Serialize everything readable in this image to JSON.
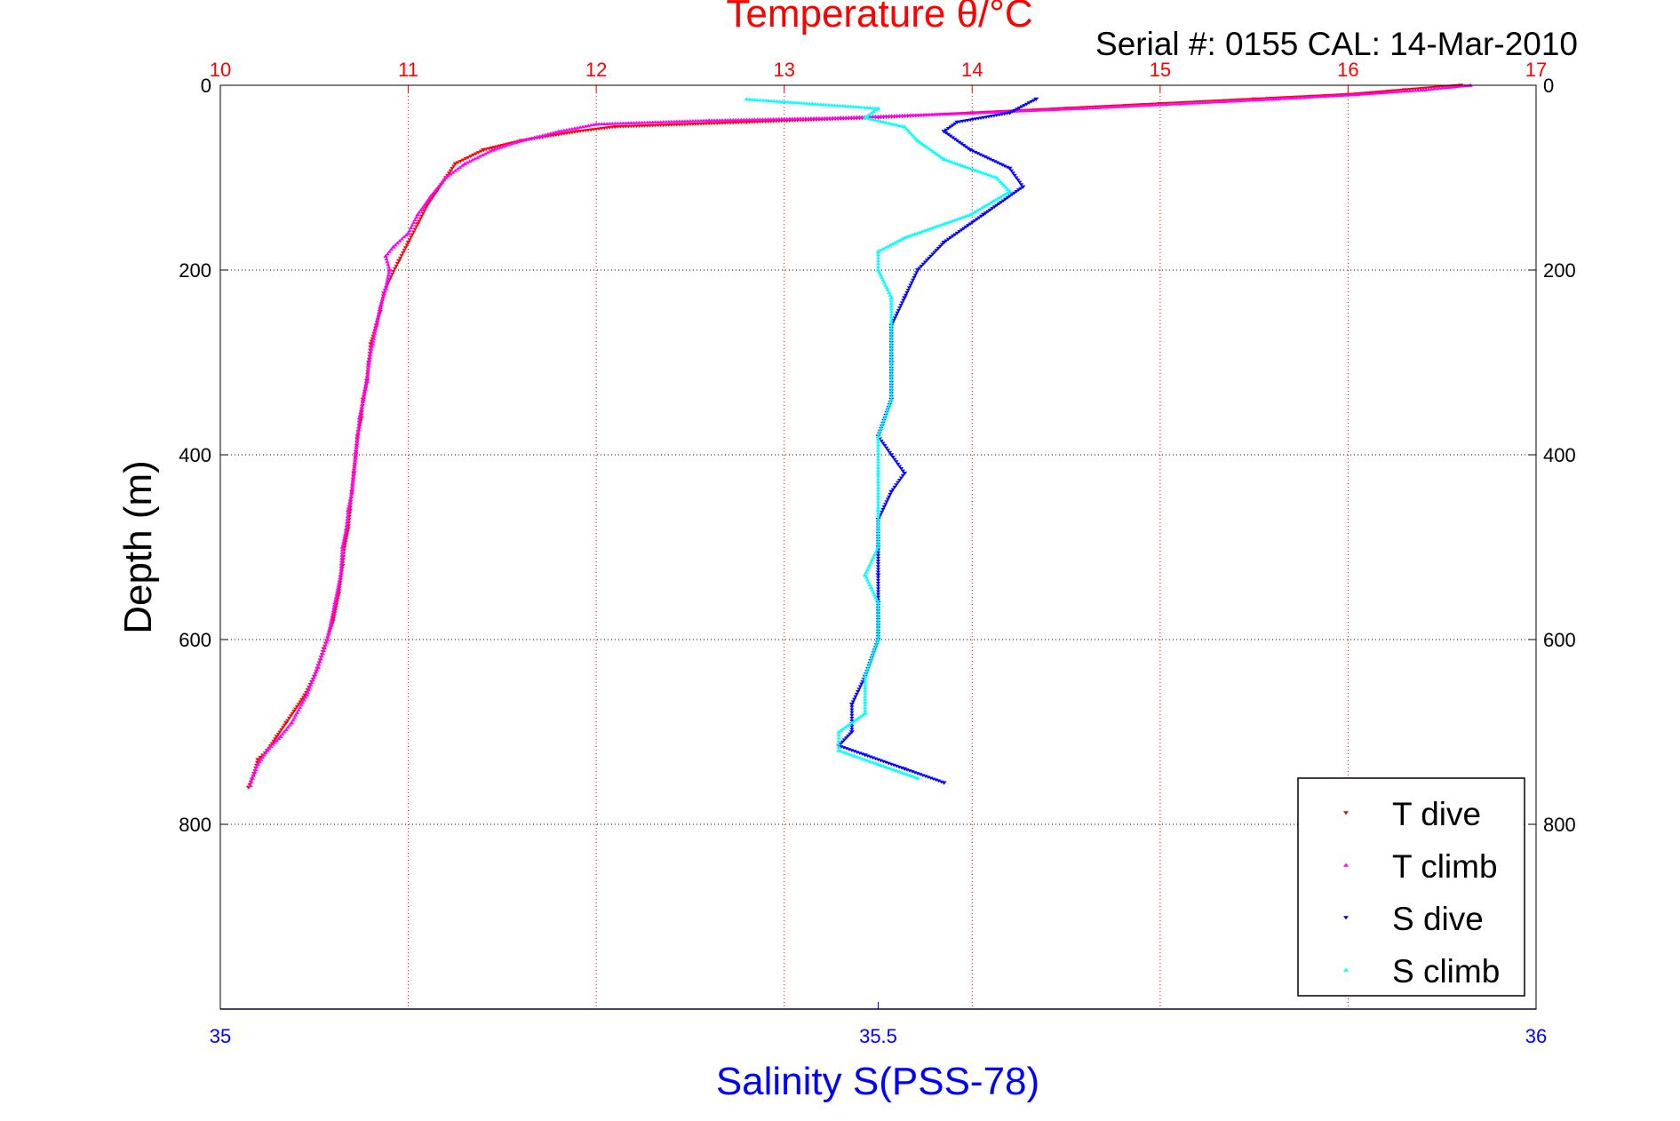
{
  "chart_data": {
    "type": "scatter",
    "title": "Temperature θ/°C",
    "subtitle": "Serial #: 0155  CAL: 14-Mar-2010",
    "xlabel": "Salinity S(PSS-78)",
    "ylabel": "Depth (m)",
    "y_axis": {
      "range": [
        0,
        1000
      ],
      "reversed": true,
      "ticks": [
        0,
        200,
        400,
        600,
        800
      ],
      "tick_labels": [
        "0",
        "200",
        "400",
        "600",
        "800"
      ]
    },
    "x_top_axis": {
      "quantity": "Temperature",
      "range": [
        10,
        17
      ],
      "ticks": [
        10,
        11,
        12,
        13,
        14,
        15,
        16,
        17
      ],
      "tick_labels": [
        "10",
        "11",
        "12",
        "13",
        "14",
        "15",
        "16",
        "17"
      ],
      "color": "#ff0000"
    },
    "x_bottom_axis": {
      "quantity": "Salinity",
      "range": [
        35,
        36
      ],
      "ticks": [
        35,
        35.5,
        36
      ],
      "tick_labels": [
        "35",
        "35.5",
        "36"
      ],
      "color": "#0000ff"
    },
    "grid": true,
    "legend": {
      "placement": "bottom-right",
      "entries": [
        "T dive",
        "T climb",
        "S dive",
        "S climb"
      ]
    },
    "series": [
      {
        "name": "T dive",
        "axis": "top",
        "color": "#ff0000",
        "marker": "triangle-down",
        "points": [
          [
            16.6,
            0
          ],
          [
            16.3,
            5
          ],
          [
            16.0,
            10
          ],
          [
            15.5,
            15
          ],
          [
            15.0,
            20
          ],
          [
            14.5,
            25
          ],
          [
            14.0,
            30
          ],
          [
            13.5,
            35
          ],
          [
            12.8,
            40
          ],
          [
            12.1,
            45
          ],
          [
            11.9,
            50
          ],
          [
            11.6,
            60
          ],
          [
            11.4,
            70
          ],
          [
            11.25,
            85
          ],
          [
            11.2,
            100
          ],
          [
            11.15,
            115
          ],
          [
            11.1,
            130
          ],
          [
            11.05,
            150
          ],
          [
            11.0,
            170
          ],
          [
            10.95,
            190
          ],
          [
            10.9,
            210
          ],
          [
            10.87,
            225
          ],
          [
            10.85,
            245
          ],
          [
            10.83,
            260
          ],
          [
            10.8,
            280
          ],
          [
            10.79,
            300
          ],
          [
            10.78,
            320
          ],
          [
            10.76,
            340
          ],
          [
            10.75,
            360
          ],
          [
            10.73,
            380
          ],
          [
            10.72,
            400
          ],
          [
            10.71,
            420
          ],
          [
            10.7,
            440
          ],
          [
            10.69,
            460
          ],
          [
            10.68,
            480
          ],
          [
            10.66,
            500
          ],
          [
            10.65,
            520
          ],
          [
            10.63,
            550
          ],
          [
            10.6,
            580
          ],
          [
            10.55,
            610
          ],
          [
            10.5,
            640
          ],
          [
            10.45,
            660
          ],
          [
            10.35,
            690
          ],
          [
            10.3,
            705
          ],
          [
            10.25,
            720
          ],
          [
            10.2,
            730
          ],
          [
            10.18,
            745
          ],
          [
            10.15,
            760
          ]
        ]
      },
      {
        "name": "T climb",
        "axis": "top",
        "color": "#ff00ff",
        "marker": "triangle-up",
        "points": [
          [
            16.65,
            0
          ],
          [
            16.4,
            5
          ],
          [
            16.05,
            10
          ],
          [
            15.6,
            15
          ],
          [
            15.1,
            20
          ],
          [
            14.6,
            25
          ],
          [
            14.0,
            30
          ],
          [
            13.3,
            35
          ],
          [
            12.6,
            38
          ],
          [
            12.0,
            42
          ],
          [
            11.8,
            50
          ],
          [
            11.6,
            60
          ],
          [
            11.45,
            70
          ],
          [
            11.3,
            85
          ],
          [
            11.2,
            100
          ],
          [
            11.12,
            120
          ],
          [
            11.05,
            140
          ],
          [
            11.0,
            160
          ],
          [
            10.92,
            175
          ],
          [
            10.88,
            185
          ],
          [
            10.9,
            200
          ],
          [
            10.88,
            220
          ],
          [
            10.85,
            240
          ],
          [
            10.83,
            260
          ],
          [
            10.81,
            280
          ],
          [
            10.79,
            300
          ],
          [
            10.78,
            320
          ],
          [
            10.76,
            340
          ],
          [
            10.74,
            360
          ],
          [
            10.73,
            380
          ],
          [
            10.72,
            400
          ],
          [
            10.71,
            420
          ],
          [
            10.7,
            440
          ],
          [
            10.68,
            460
          ],
          [
            10.67,
            480
          ],
          [
            10.65,
            500
          ],
          [
            10.64,
            530
          ],
          [
            10.61,
            560
          ],
          [
            10.57,
            600
          ],
          [
            10.52,
            630
          ],
          [
            10.46,
            660
          ],
          [
            10.38,
            690
          ],
          [
            10.32,
            705
          ],
          [
            10.25,
            720
          ],
          [
            10.2,
            735
          ],
          [
            10.17,
            750
          ],
          [
            10.16,
            758
          ]
        ]
      },
      {
        "name": "S dive",
        "axis": "bottom",
        "color": "#0000ff",
        "marker": "triangle-down",
        "points": [
          [
            35.62,
            15
          ],
          [
            35.6,
            30
          ],
          [
            35.56,
            40
          ],
          [
            35.55,
            50
          ],
          [
            35.57,
            70
          ],
          [
            35.6,
            90
          ],
          [
            35.61,
            110
          ],
          [
            35.58,
            140
          ],
          [
            35.55,
            170
          ],
          [
            35.53,
            200
          ],
          [
            35.52,
            230
          ],
          [
            35.51,
            260
          ],
          [
            35.51,
            300
          ],
          [
            35.51,
            340
          ],
          [
            35.5,
            380
          ],
          [
            35.51,
            400
          ],
          [
            35.52,
            420
          ],
          [
            35.51,
            440
          ],
          [
            35.5,
            470
          ],
          [
            35.5,
            500
          ],
          [
            35.5,
            530
          ],
          [
            35.5,
            560
          ],
          [
            35.5,
            600
          ],
          [
            35.49,
            640
          ],
          [
            35.48,
            670
          ],
          [
            35.48,
            700
          ],
          [
            35.47,
            715
          ],
          [
            35.49,
            725
          ],
          [
            35.52,
            740
          ],
          [
            35.55,
            755
          ]
        ]
      },
      {
        "name": "S climb",
        "axis": "bottom",
        "color": "#00ffff",
        "marker": "triangle-up",
        "points": [
          [
            35.4,
            15
          ],
          [
            35.45,
            20
          ],
          [
            35.5,
            25
          ],
          [
            35.49,
            35
          ],
          [
            35.52,
            45
          ],
          [
            35.53,
            60
          ],
          [
            35.55,
            80
          ],
          [
            35.59,
            100
          ],
          [
            35.6,
            115
          ],
          [
            35.57,
            140
          ],
          [
            35.52,
            165
          ],
          [
            35.5,
            180
          ],
          [
            35.5,
            200
          ],
          [
            35.51,
            230
          ],
          [
            35.51,
            260
          ],
          [
            35.51,
            300
          ],
          [
            35.51,
            340
          ],
          [
            35.5,
            380
          ],
          [
            35.5,
            420
          ],
          [
            35.5,
            460
          ],
          [
            35.5,
            500
          ],
          [
            35.49,
            530
          ],
          [
            35.5,
            560
          ],
          [
            35.5,
            600
          ],
          [
            35.49,
            640
          ],
          [
            35.49,
            680
          ],
          [
            35.47,
            700
          ],
          [
            35.47,
            720
          ],
          [
            35.5,
            735
          ],
          [
            35.53,
            750
          ]
        ]
      }
    ]
  }
}
